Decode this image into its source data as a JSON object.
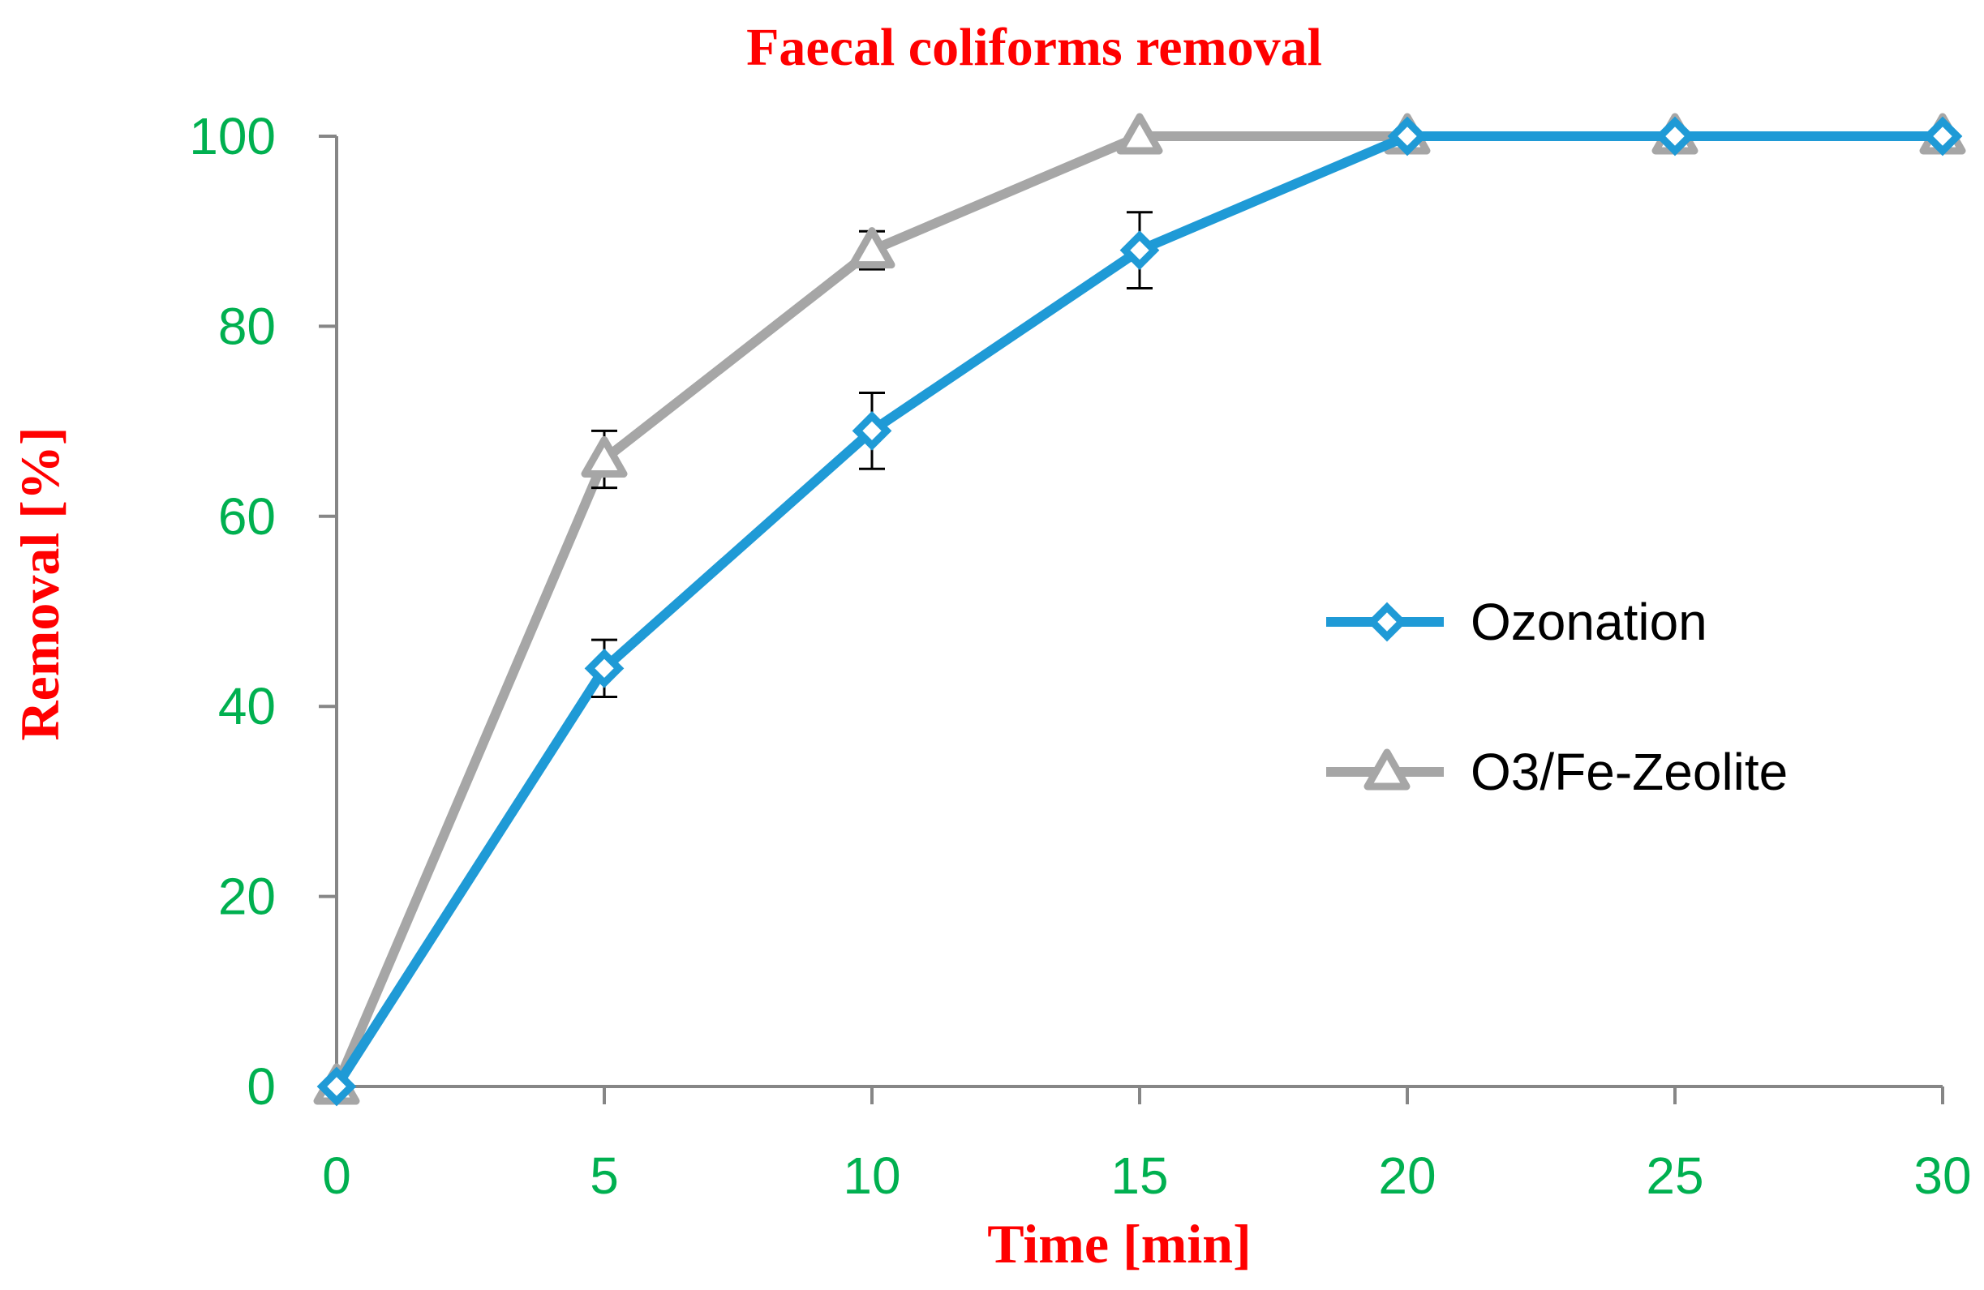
{
  "chart_data": {
    "type": "line",
    "title": "Faecal coliforms removal",
    "xlabel": "Time [min]",
    "ylabel": "Removal [%]",
    "xlim": [
      0,
      30
    ],
    "ylim": [
      0,
      100
    ],
    "x_ticks": [
      "0",
      "5",
      "10",
      "15",
      "20",
      "25",
      "30"
    ],
    "y_ticks": [
      "0",
      "20",
      "40",
      "60",
      "80",
      "100"
    ],
    "x": [
      0,
      5,
      10,
      15,
      20,
      25,
      30
    ],
    "grid": false,
    "legend_position": "right",
    "series": [
      {
        "name": "Ozonation",
        "values": [
          0,
          44,
          69,
          88,
          100,
          100,
          100
        ],
        "errors": [
          0,
          3,
          4,
          4,
          0,
          0,
          0
        ],
        "marker": "diamond",
        "color": "#1f9ad6"
      },
      {
        "name": "O3/Fe-Zeolite",
        "values": [
          0,
          66,
          88,
          100,
          100,
          100,
          100
        ],
        "errors": [
          0,
          3,
          2,
          0,
          0,
          0,
          0
        ],
        "marker": "triangle",
        "color": "#a6a6a6"
      }
    ],
    "colors": {
      "title": "#ff0000",
      "axis_title": "#ff0000",
      "tick_label": "#00b050",
      "axis_line": "#868686",
      "error_bar": "#000000",
      "legend_text": "#000000"
    }
  }
}
